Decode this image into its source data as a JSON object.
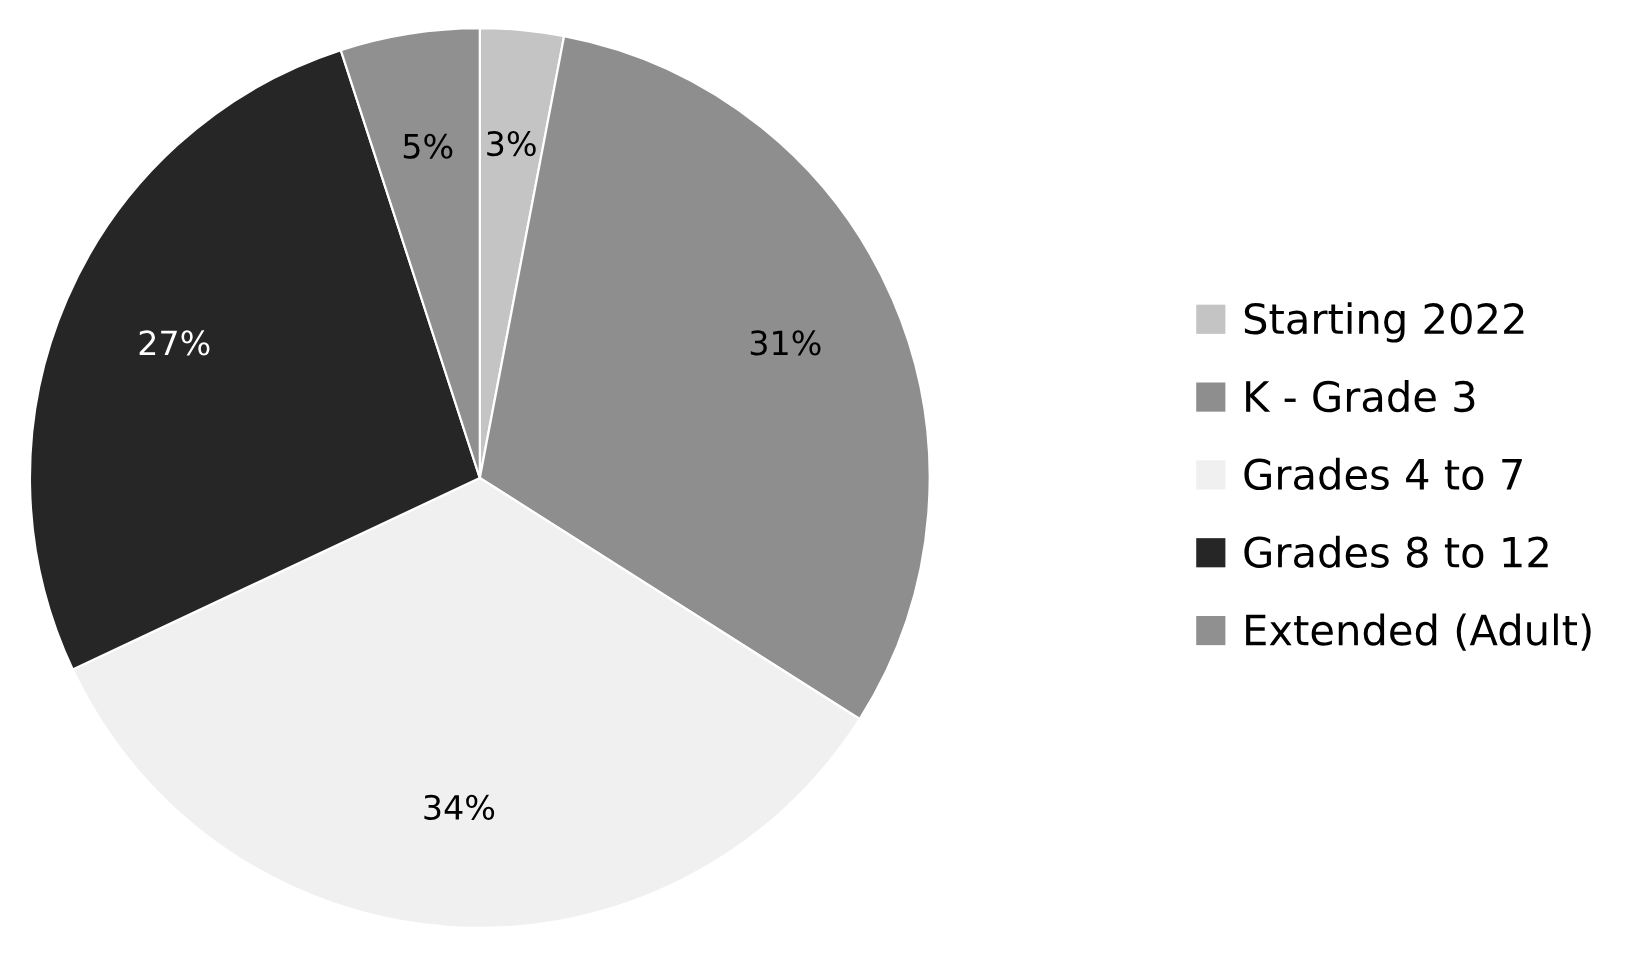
{
  "chart_data": {
    "type": "pie",
    "categories": [
      "Starting 2022",
      "K - Grade 3",
      "Grades 4 to 7",
      "Grades 8 to 12",
      "Extended (Adult)"
    ],
    "values": [
      3,
      31,
      34,
      27,
      5
    ],
    "colors": [
      "#c4c4c4",
      "#8e8e8e",
      "#f0f0f0",
      "#262626",
      "#909090"
    ],
    "value_labels": [
      "3%",
      "31%",
      "34%",
      "27%",
      "5%"
    ],
    "legend": "right"
  }
}
